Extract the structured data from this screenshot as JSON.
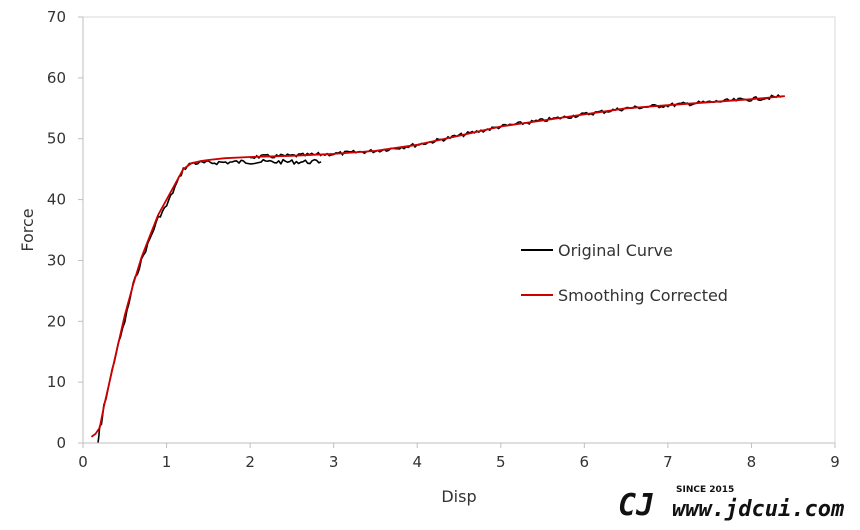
{
  "chart_data": {
    "type": "line",
    "title": "",
    "xlabel": "Disp",
    "ylabel": "Force",
    "xlim": [
      0,
      9
    ],
    "ylim": [
      0,
      70
    ],
    "xticks": [
      0,
      1,
      2,
      3,
      4,
      5,
      6,
      7,
      8,
      9
    ],
    "yticks": [
      0,
      10,
      20,
      30,
      40,
      50,
      60,
      70
    ],
    "grid": false,
    "legend_position": "right-center",
    "series": [
      {
        "name": "Original Curve",
        "color": "#000000",
        "noisy": true,
        "x": [
          0.18,
          0.2,
          0.22,
          0.25,
          0.3,
          0.4,
          0.5,
          0.6,
          0.7,
          0.8,
          0.9,
          1.0,
          1.1,
          1.2,
          1.25,
          1.3,
          1.35,
          1.45,
          1.6,
          2.0,
          2.5,
          2.85
        ],
        "y": [
          0,
          2.5,
          3,
          6,
          9,
          15,
          20,
          26,
          30,
          33.5,
          37,
          39,
          42,
          45,
          45.5,
          46,
          46,
          46,
          46.1,
          46.2,
          46.2,
          46.2
        ]
      },
      {
        "name": "Smoothing Corrected",
        "color": "#cc0000",
        "noisy": false,
        "x": [
          0.1,
          0.15,
          0.2,
          0.25,
          0.3,
          0.4,
          0.5,
          0.6,
          0.7,
          0.8,
          0.9,
          1.0,
          1.1,
          1.2,
          1.25,
          1.3,
          1.4,
          1.5,
          1.7,
          2.0,
          2.5,
          3.0,
          3.5,
          4.0,
          4.5,
          5.0,
          5.5,
          6.0,
          6.5,
          7.0,
          7.5,
          8.0,
          8.4
        ],
        "y": [
          1,
          1.5,
          2.5,
          6,
          9,
          15,
          21,
          26,
          30.5,
          34,
          37.5,
          40,
          42.5,
          45,
          45.5,
          46,
          46.3,
          46.5,
          46.8,
          47,
          47.2,
          47.5,
          48,
          49,
          50.5,
          52,
          53,
          54,
          55,
          55.5,
          56,
          56.5,
          57
        ]
      }
    ]
  },
  "watermark": {
    "logo_text": "CJ",
    "since": "SINCE 2015",
    "url": "www.jdcui.com"
  }
}
